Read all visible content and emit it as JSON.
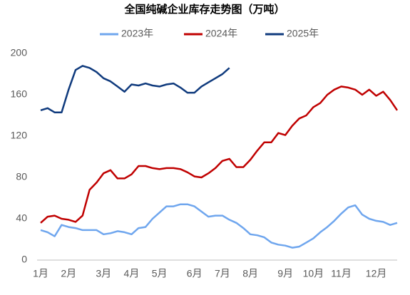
{
  "chart_data": {
    "type": "line",
    "title": "全国纯碱企业库存走势图（万吨）",
    "categories": [
      "1月",
      null,
      null,
      null,
      "2月",
      null,
      null,
      null,
      null,
      "3月",
      null,
      null,
      null,
      "4月",
      null,
      null,
      null,
      "5月",
      null,
      null,
      null,
      null,
      "6月",
      null,
      null,
      null,
      "7月",
      null,
      null,
      null,
      "8月",
      null,
      null,
      null,
      null,
      "9月",
      null,
      null,
      null,
      "10月",
      null,
      null,
      null,
      "11月",
      null,
      null,
      null,
      null,
      "12月",
      null,
      null,
      null
    ],
    "series": [
      {
        "name": "2023年",
        "color": "#6fa6ee",
        "values": [
          29,
          27,
          23,
          34,
          32,
          31,
          29,
          29,
          29,
          25,
          26,
          28,
          27,
          25,
          31,
          32,
          40,
          46,
          52,
          52,
          54,
          54,
          52,
          47,
          42,
          43,
          43,
          39,
          36,
          31,
          25,
          24,
          22,
          17,
          15,
          14,
          12,
          13,
          17,
          21,
          27,
          32,
          38,
          45,
          51,
          53,
          44,
          40,
          38,
          37,
          34,
          36
        ]
      },
      {
        "name": "2024年",
        "color": "#c00000",
        "values": [
          36,
          42,
          43,
          40,
          39,
          37,
          43,
          68,
          75,
          84,
          87,
          79,
          79,
          83,
          91,
          91,
          89,
          88,
          89,
          89,
          88,
          85,
          81,
          80,
          84,
          89,
          96,
          98,
          90,
          90,
          97,
          106,
          114,
          114,
          123,
          121,
          130,
          137,
          140,
          148,
          152,
          160,
          165,
          168,
          167,
          165,
          160,
          165,
          159,
          163,
          155,
          145
        ]
      },
      {
        "name": "2025年",
        "color": "#0f3a7d",
        "values": [
          145,
          147,
          143,
          143,
          165,
          184,
          188,
          186,
          182,
          176,
          173,
          168,
          163,
          170,
          169,
          171,
          169,
          168,
          170,
          171,
          167,
          162,
          162,
          168,
          172,
          176,
          180,
          186,
          null,
          null,
          null,
          null,
          null,
          null,
          null,
          null,
          null,
          null,
          null,
          null,
          null,
          null,
          null,
          null,
          null,
          null,
          null,
          null,
          null,
          null,
          null,
          null
        ]
      }
    ],
    "ylim": [
      0,
      200
    ],
    "yticks": [
      0,
      40,
      80,
      120,
      160,
      200
    ]
  }
}
